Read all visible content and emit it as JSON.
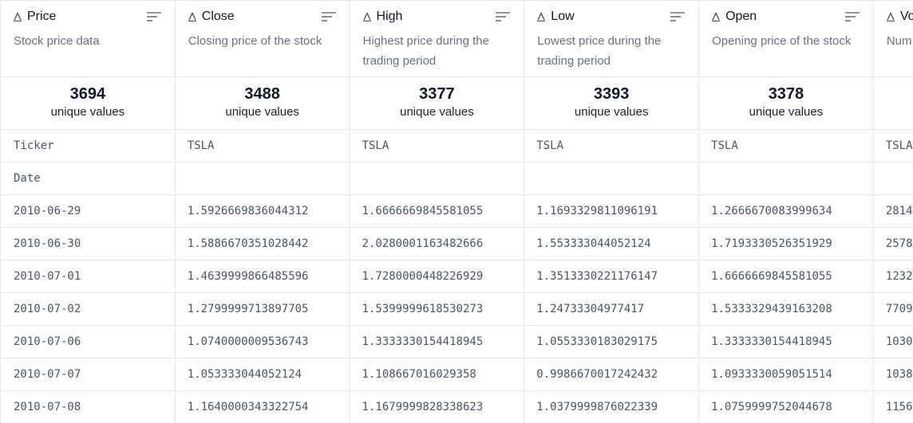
{
  "columns": [
    {
      "name": "Price",
      "description": "Stock price data",
      "unique_count": "3694",
      "unique_label": "unique values"
    },
    {
      "name": "Close",
      "description": "Closing price of the stock",
      "unique_count": "3488",
      "unique_label": "unique values"
    },
    {
      "name": "High",
      "description": "Highest price during the trading period",
      "unique_count": "3377",
      "unique_label": "unique values"
    },
    {
      "name": "Low",
      "description": "Lowest price during the trading period",
      "unique_count": "3393",
      "unique_label": "unique values"
    },
    {
      "name": "Open",
      "description": "Opening price of the stock",
      "unique_count": "3378",
      "unique_label": "unique values"
    },
    {
      "name": "Vo",
      "description": "Num",
      "unique_count": "",
      "unique_label": ""
    }
  ],
  "rows": [
    [
      "Ticker",
      "TSLA",
      "TSLA",
      "TSLA",
      "TSLA",
      "TSLA"
    ],
    [
      "Date",
      "",
      "",
      "",
      "",
      ""
    ],
    [
      "2010-06-29",
      "1.5926669836044312",
      "1.6666669845581055",
      "1.1693329811096191",
      "1.2666670083999634",
      "2814"
    ],
    [
      "2010-06-30",
      "1.5886670351028442",
      "2.0280001163482666",
      "1.553333044052124",
      "1.7193330526351929",
      "2578"
    ],
    [
      "2010-07-01",
      "1.4639999866485596",
      "1.7280000448226929",
      "1.3513330221176147",
      "1.6666669845581055",
      "1232"
    ],
    [
      "2010-07-02",
      "1.2799999713897705",
      "1.5399999618530273",
      "1.24733304977417",
      "1.5333329439163208",
      "7709"
    ],
    [
      "2010-07-06",
      "1.0740000009536743",
      "1.3333330154418945",
      "1.0553330183029175",
      "1.3333330154418945",
      "1030"
    ],
    [
      "2010-07-07",
      "1.053333044052124",
      "1.108667016029358",
      "0.9986670017242432",
      "1.0933330059051514",
      "1038"
    ],
    [
      "2010-07-08",
      "1.1640000343322754",
      "1.1679999828338623",
      "1.0379999876022339",
      "1.0759999752044678",
      "1156"
    ]
  ],
  "icons": {
    "type_icon": "text-type-icon",
    "sort_icon": "sort-lines-icon"
  },
  "colors": {
    "border": "#e5e7eb",
    "text_muted": "#6b7280",
    "text_strong": "#111827"
  }
}
